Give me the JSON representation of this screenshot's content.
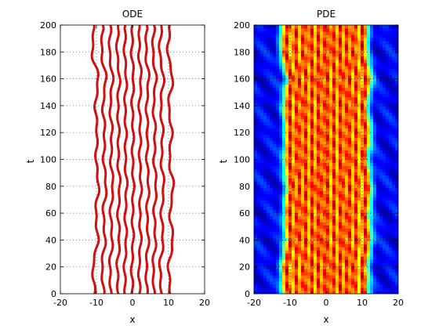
{
  "chart_data": [
    {
      "type": "line",
      "title": "ODE",
      "xlabel": "x",
      "ylabel": "t",
      "xlim": [
        -20,
        20
      ],
      "ylim": [
        0,
        200
      ],
      "xticks": [
        -20,
        -10,
        0,
        10,
        20
      ],
      "yticks": [
        0,
        20,
        40,
        60,
        80,
        100,
        120,
        140,
        160,
        180,
        200
      ],
      "grid": true,
      "series": [
        {
          "x": [
            -10.5,
            -11.0,
            -9.6,
            -10.2,
            -9.4,
            -10.1,
            -9.8,
            -10.3,
            -9.5,
            -11.2,
            -10.6
          ],
          "t": [
            0,
            20,
            40,
            60,
            80,
            100,
            120,
            140,
            160,
            180,
            200
          ]
        },
        {
          "x": [
            -8.0,
            -8.5,
            -7.6,
            -8.1,
            -7.3,
            -8.0,
            -7.7,
            -8.2,
            -7.4,
            -8.6,
            -8.2
          ],
          "t": [
            0,
            20,
            40,
            60,
            80,
            100,
            120,
            140,
            160,
            180,
            200
          ]
        },
        {
          "x": [
            -6.0,
            -6.3,
            -5.6,
            -6.1,
            -5.4,
            -6.0,
            -5.7,
            -6.2,
            -5.5,
            -6.4,
            -6.1
          ],
          "t": [
            0,
            20,
            40,
            60,
            80,
            100,
            120,
            140,
            160,
            180,
            200
          ]
        },
        {
          "x": [
            -4.0,
            -4.2,
            -3.6,
            -4.0,
            -3.5,
            -4.0,
            -3.8,
            -4.1,
            -3.6,
            -4.3,
            -4.0
          ],
          "t": [
            0,
            20,
            40,
            60,
            80,
            100,
            120,
            140,
            160,
            180,
            200
          ]
        },
        {
          "x": [
            -2.0,
            -2.2,
            -1.7,
            -2.0,
            -1.6,
            -2.0,
            -1.8,
            -2.1,
            -1.7,
            -2.2,
            -2.0
          ],
          "t": [
            0,
            20,
            40,
            60,
            80,
            100,
            120,
            140,
            160,
            180,
            200
          ]
        },
        {
          "x": [
            0.0,
            -0.2,
            0.2,
            0.0,
            0.3,
            0.0,
            0.2,
            -0.1,
            0.3,
            -0.2,
            0.0
          ],
          "t": [
            0,
            20,
            40,
            60,
            80,
            100,
            120,
            140,
            160,
            180,
            200
          ]
        },
        {
          "x": [
            2.0,
            1.8,
            2.3,
            2.0,
            2.4,
            2.0,
            2.2,
            1.9,
            2.4,
            1.8,
            2.0
          ],
          "t": [
            0,
            20,
            40,
            60,
            80,
            100,
            120,
            140,
            160,
            180,
            200
          ]
        },
        {
          "x": [
            4.0,
            3.8,
            4.4,
            4.0,
            4.5,
            4.0,
            4.2,
            3.9,
            4.5,
            3.7,
            4.0
          ],
          "t": [
            0,
            20,
            40,
            60,
            80,
            100,
            120,
            140,
            160,
            180,
            200
          ]
        },
        {
          "x": [
            6.0,
            5.7,
            6.4,
            6.0,
            6.6,
            6.0,
            6.3,
            5.8,
            6.5,
            5.6,
            6.0
          ],
          "t": [
            0,
            20,
            40,
            60,
            80,
            100,
            120,
            140,
            160,
            180,
            200
          ]
        },
        {
          "x": [
            8.0,
            7.6,
            8.5,
            8.0,
            8.7,
            8.0,
            8.4,
            7.8,
            8.6,
            7.5,
            8.0
          ],
          "t": [
            0,
            20,
            40,
            60,
            80,
            100,
            120,
            140,
            160,
            180,
            200
          ]
        },
        {
          "x": [
            10.5,
            10.0,
            11.2,
            10.4,
            11.3,
            10.2,
            10.9,
            10.0,
            11.1,
            9.8,
            10.3
          ],
          "t": [
            0,
            20,
            40,
            60,
            80,
            100,
            120,
            140,
            160,
            180,
            200
          ]
        }
      ]
    },
    {
      "type": "heatmap",
      "title": "PDE",
      "xlabel": "x",
      "ylabel": "t",
      "xlim": [
        -20,
        20
      ],
      "ylim": [
        0,
        200
      ],
      "xticks": [
        -20,
        -10,
        0,
        10,
        20
      ],
      "yticks": [
        0,
        20,
        40,
        60,
        80,
        100,
        120,
        140,
        160,
        180,
        200
      ],
      "grid": true,
      "colormap": "jet"
    }
  ],
  "colors": {
    "ode_line": "#d01010",
    "grid": "#555555",
    "axis": "#000000",
    "heat_low": "#00007f",
    "heat_high": "#7f0000"
  }
}
